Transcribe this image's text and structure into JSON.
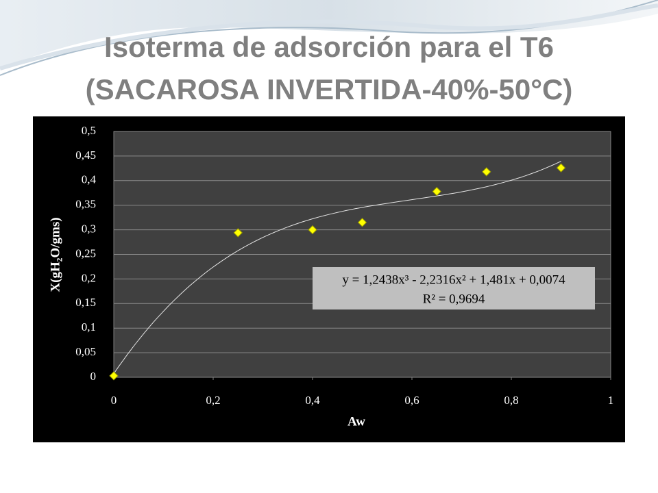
{
  "title_lines": [
    "Isoterma de adsorción para el T6",
    "(SACAROSA INVERTIDA-40%-50°C)"
  ],
  "chart_data": {
    "type": "scatter",
    "x_label": "Aw",
    "y_label": "X(gH₂O/gms)",
    "x": [
      0,
      0.25,
      0.4,
      0.5,
      0.65,
      0.75,
      0.9
    ],
    "values": [
      0.003,
      0.294,
      0.3,
      0.315,
      0.378,
      0.418,
      0.426
    ],
    "color": "#ffff00",
    "xlim": [
      0,
      1
    ],
    "xticks": [
      0,
      {
        "value": 0.2,
        "label": "0,2"
      },
      {
        "value": 0.4,
        "label": "0,4"
      },
      {
        "value": 0.6,
        "label": "0,6"
      },
      {
        "value": 0.8,
        "label": "0,8"
      },
      1
    ],
    "ylim": [
      0,
      0.5
    ],
    "yticks": [
      0,
      {
        "value": 0.05,
        "label": "0,05"
      },
      {
        "value": 0.1,
        "label": "0,1"
      },
      {
        "value": 0.15,
        "label": "0,15"
      },
      {
        "value": 0.2,
        "label": "0,2"
      },
      {
        "value": 0.25,
        "label": "0,25"
      },
      {
        "value": 0.3,
        "label": "0,3"
      },
      {
        "value": 0.35,
        "label": "0,35"
      },
      {
        "value": 0.4,
        "label": "0,4"
      },
      {
        "value": 0.45,
        "label": "0,45"
      },
      {
        "value": 0.5,
        "label": "0,5"
      }
    ],
    "grid": true,
    "trendline": {
      "equation": "y = 1,2438x³ - 2,2316x² + 1,481x + 0,0074",
      "r2": "R² = 0,9694",
      "coefficients": [
        1.2438,
        -2.2316,
        1.481,
        0.0074
      ]
    }
  }
}
